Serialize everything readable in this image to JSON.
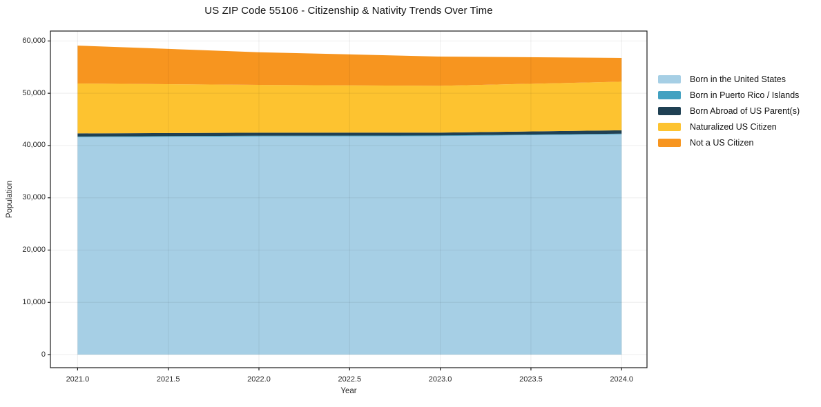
{
  "chart_data": {
    "type": "area",
    "stacked": true,
    "title": "US ZIP Code 55106 - Citizenship & Nativity Trends Over Time",
    "xlabel": "Year",
    "ylabel": "Population",
    "x": [
      2021,
      2022,
      2023,
      2024
    ],
    "series": [
      {
        "name": "Born in the United States",
        "color": "#A6CFE5",
        "values": [
          41600,
          41750,
          41800,
          42150
        ]
      },
      {
        "name": "Born in Puerto Rico / Islands",
        "color": "#42A1C1",
        "values": [
          120,
          120,
          120,
          120
        ]
      },
      {
        "name": "Born Abroad of US Parent(s)",
        "color": "#1F4053",
        "values": [
          600,
          580,
          550,
          650
        ]
      },
      {
        "name": "Naturalized US Citizen",
        "color": "#FDC330",
        "values": [
          9550,
          9150,
          8950,
          9290
        ]
      },
      {
        "name": "Not a US Citizen",
        "color": "#F7951F",
        "values": [
          7250,
          6250,
          5600,
          4550
        ]
      }
    ],
    "xlim": [
      2020.85,
      2024.14
    ],
    "ylim": [
      -2500,
      61900
    ],
    "xticks": {
      "values": [
        2021.0,
        2021.5,
        2022.0,
        2022.5,
        2023.0,
        2023.5,
        2024.0
      ],
      "labels": [
        "2021.0",
        "2021.5",
        "2022.0",
        "2022.5",
        "2023.0",
        "2023.5",
        "2024.0"
      ]
    },
    "yticks": {
      "values": [
        0,
        10000,
        20000,
        30000,
        40000,
        50000,
        60000
      ],
      "labels": [
        "0",
        "10,000",
        "20,000",
        "30,000",
        "40,000",
        "50,000",
        "60,000"
      ]
    },
    "grid": true,
    "legend_position": "right-outside",
    "colors": {
      "background": "#ffffff",
      "spine": "#1a1a1a",
      "grid": "rgba(0,0,0,0.07)",
      "text": "#262626"
    }
  }
}
